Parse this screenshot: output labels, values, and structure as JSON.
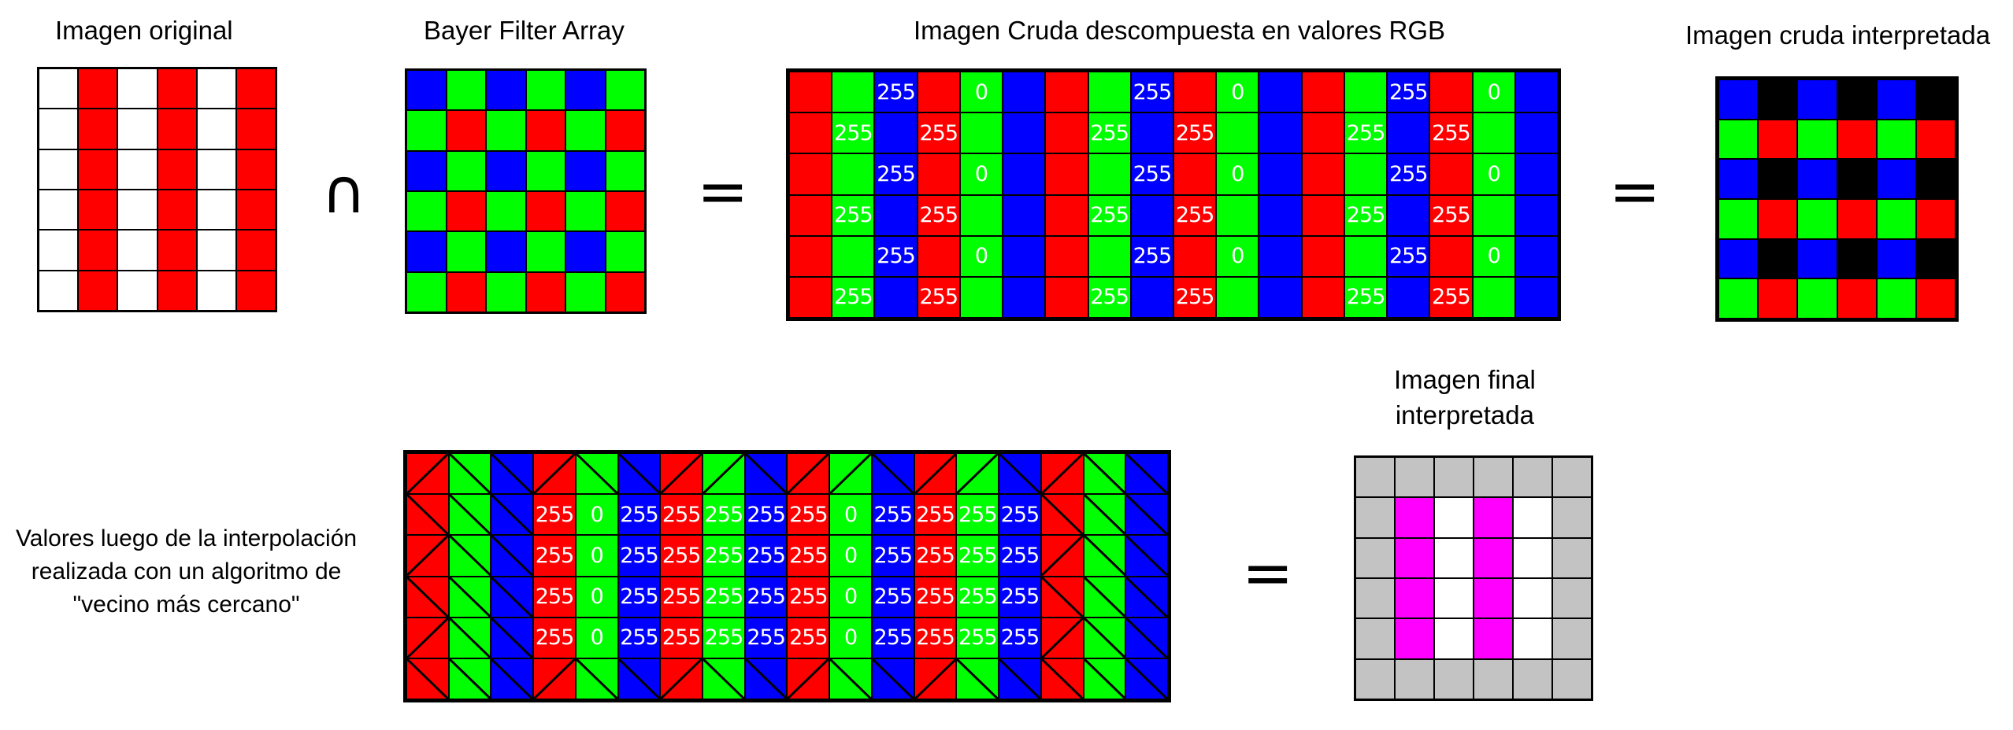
{
  "colors": {
    "R": "#ff0000",
    "G": "#00ff00",
    "B": "#0000ff",
    "W": "#ffffff",
    "K": "#000000",
    "M": "#ff00ff",
    "S": "#c3c3c3"
  },
  "titles": {
    "original": "Imagen original",
    "bayer": "Bayer Filter Array",
    "raw": "Imagen Cruda descompuesta en valores RGB",
    "raw_interpreted": "Imagen cruda interpretada",
    "final_line1": "Imagen final",
    "final_line2": "interpretada"
  },
  "side_note": {
    "line1": "Valores luego de la interpolación",
    "line2": "realizada con un algoritmo de",
    "line3": "\"vecino más cercano\""
  },
  "symbols": {
    "intersection": "∩",
    "equals1": "=",
    "equals2": "=",
    "equals3": "="
  },
  "grids": {
    "original": {
      "cols": 6,
      "rows": [
        [
          "W",
          "R",
          "W",
          "R",
          "W",
          "R"
        ],
        [
          "W",
          "R",
          "W",
          "R",
          "W",
          "R"
        ],
        [
          "W",
          "R",
          "W",
          "R",
          "W",
          "R"
        ],
        [
          "W",
          "R",
          "W",
          "R",
          "W",
          "R"
        ],
        [
          "W",
          "R",
          "W",
          "R",
          "W",
          "R"
        ],
        [
          "W",
          "R",
          "W",
          "R",
          "W",
          "R"
        ]
      ]
    },
    "bayer": {
      "cols": 6,
      "rows": [
        [
          "B",
          "G",
          "B",
          "G",
          "B",
          "G"
        ],
        [
          "G",
          "R",
          "G",
          "R",
          "G",
          "R"
        ],
        [
          "B",
          "G",
          "B",
          "G",
          "B",
          "G"
        ],
        [
          "G",
          "R",
          "G",
          "R",
          "G",
          "R"
        ],
        [
          "B",
          "G",
          "B",
          "G",
          "B",
          "G"
        ],
        [
          "G",
          "R",
          "G",
          "R",
          "G",
          "R"
        ]
      ]
    },
    "raw": {
      "cols": 18,
      "rows": [
        [
          "R",
          "G",
          "B|255",
          "R",
          "G|0",
          "B",
          "R",
          "G",
          "B|255",
          "R",
          "G|0",
          "B",
          "R",
          "G",
          "B|255",
          "R",
          "G|0",
          "B"
        ],
        [
          "R",
          "G|255",
          "B",
          "R|255",
          "G",
          "B",
          "R",
          "G|255",
          "B",
          "R|255",
          "G",
          "B",
          "R",
          "G|255",
          "B",
          "R|255",
          "G",
          "B"
        ],
        [
          "R",
          "G",
          "B|255",
          "R",
          "G|0",
          "B",
          "R",
          "G",
          "B|255",
          "R",
          "G|0",
          "B",
          "R",
          "G",
          "B|255",
          "R",
          "G|0",
          "B"
        ],
        [
          "R",
          "G|255",
          "B",
          "R|255",
          "G",
          "B",
          "R",
          "G|255",
          "B",
          "R|255",
          "G",
          "B",
          "R",
          "G|255",
          "B",
          "R|255",
          "G",
          "B"
        ],
        [
          "R",
          "G",
          "B|255",
          "R",
          "G|0",
          "B",
          "R",
          "G",
          "B|255",
          "R",
          "G|0",
          "B",
          "R",
          "G",
          "B|255",
          "R",
          "G|0",
          "B"
        ],
        [
          "R",
          "G|255",
          "B",
          "R|255",
          "G",
          "B",
          "R",
          "G|255",
          "B",
          "R|255",
          "G",
          "B",
          "R",
          "G|255",
          "B",
          "R|255",
          "G",
          "B"
        ]
      ]
    },
    "raw_interpreted": {
      "cols": 6,
      "rows": [
        [
          "B",
          "K",
          "B",
          "K",
          "B",
          "K"
        ],
        [
          "G",
          "R",
          "G",
          "R",
          "G",
          "R"
        ],
        [
          "B",
          "K",
          "B",
          "K",
          "B",
          "K"
        ],
        [
          "G",
          "R",
          "G",
          "R",
          "G",
          "R"
        ],
        [
          "B",
          "K",
          "B",
          "K",
          "B",
          "K"
        ],
        [
          "G",
          "R",
          "G",
          "R",
          "G",
          "R"
        ]
      ]
    },
    "interpolated": {
      "cols": 18,
      "rows": [
        [
          "R/",
          "G\\",
          "B\\",
          "R/",
          "G\\",
          "B\\",
          "R/",
          "G/",
          "B\\",
          "R/",
          "G/",
          "B\\",
          "R/",
          "G/",
          "B\\",
          "R/",
          "G\\",
          "B\\"
        ],
        [
          "R\\",
          "G\\",
          "B\\",
          "R|255",
          "G|0",
          "B|255",
          "R|255",
          "G|255",
          "B|255",
          "R|255",
          "G|0",
          "B|255",
          "R|255",
          "G|255",
          "B|255",
          "R\\",
          "G\\",
          "B\\"
        ],
        [
          "R/",
          "G\\",
          "B\\",
          "R|255",
          "G|0",
          "B|255",
          "R|255",
          "G|255",
          "B|255",
          "R|255",
          "G|0",
          "B|255",
          "R|255",
          "G|255",
          "B|255",
          "R/",
          "G\\",
          "B\\"
        ],
        [
          "R\\",
          "G\\",
          "B\\",
          "R|255",
          "G|0",
          "B|255",
          "R|255",
          "G|255",
          "B|255",
          "R|255",
          "G|0",
          "B|255",
          "R|255",
          "G|255",
          "B|255",
          "R\\",
          "G\\",
          "B\\"
        ],
        [
          "R/",
          "G\\",
          "B\\",
          "R|255",
          "G|0",
          "B|255",
          "R|255",
          "G|255",
          "B|255",
          "R|255",
          "G|0",
          "B|255",
          "R|255",
          "G|255",
          "B|255",
          "R/",
          "G\\",
          "B\\"
        ],
        [
          "R\\",
          "G\\",
          "B\\",
          "R/",
          "G\\",
          "B\\",
          "R/",
          "G\\",
          "B\\",
          "R/",
          "G\\",
          "B\\",
          "R/",
          "G\\",
          "B\\",
          "R\\",
          "G\\",
          "B\\"
        ]
      ]
    },
    "final": {
      "cols": 6,
      "rows": [
        [
          "S",
          "S",
          "S",
          "S",
          "S",
          "S"
        ],
        [
          "S",
          "M",
          "W",
          "M",
          "W",
          "S"
        ],
        [
          "S",
          "M",
          "W",
          "M",
          "W",
          "S"
        ],
        [
          "S",
          "M",
          "W",
          "M",
          "W",
          "S"
        ],
        [
          "S",
          "M",
          "W",
          "M",
          "W",
          "S"
        ],
        [
          "S",
          "S",
          "S",
          "S",
          "S",
          "S"
        ]
      ]
    }
  }
}
